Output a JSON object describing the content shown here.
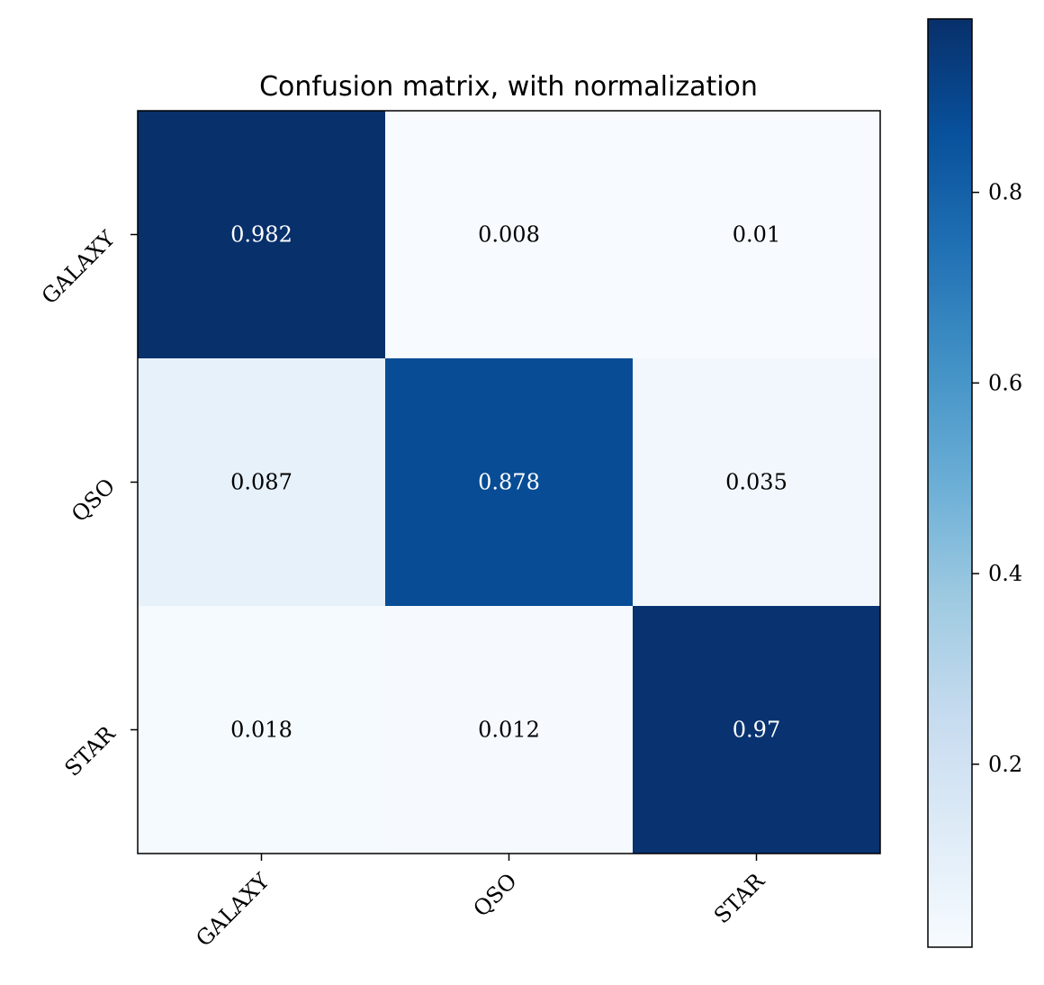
{
  "chart_data": {
    "type": "heatmap",
    "title": "Confusion matrix, with normalization",
    "x_categories": [
      "GALAXY",
      "QSO",
      "STAR"
    ],
    "y_categories": [
      "GALAXY",
      "QSO",
      "STAR"
    ],
    "values": [
      [
        0.982,
        0.008,
        0.01
      ],
      [
        0.087,
        0.878,
        0.035
      ],
      [
        0.018,
        0.012,
        0.97
      ]
    ],
    "value_labels": [
      [
        "0.982",
        "0.008",
        "0.01"
      ],
      [
        "0.087",
        "0.878",
        "0.035"
      ],
      [
        "0.018",
        "0.012",
        "0.97"
      ]
    ],
    "colormap": "Blues",
    "colorbar": {
      "range": [
        0.008,
        0.982
      ],
      "ticks": [
        0.2,
        0.4,
        0.6,
        0.8
      ],
      "tick_labels": [
        "0.2",
        "0.4",
        "0.6",
        "0.8"
      ],
      "placement": "right"
    },
    "grid": false
  }
}
